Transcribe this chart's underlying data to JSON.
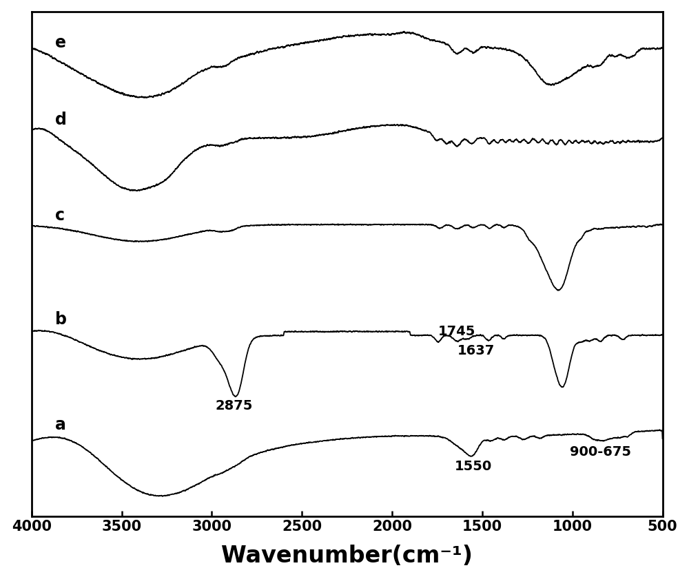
{
  "xmin": 500,
  "xmax": 4000,
  "xlabel": "Wavenumber(cm⁻¹)",
  "xlabel_fontsize": 24,
  "tick_fontsize": 15,
  "background_color": "#ffffff",
  "line_color": "#000000",
  "line_width": 1.3,
  "xticks": [
    4000,
    3500,
    3000,
    2500,
    2000,
    1500,
    1000,
    500
  ],
  "labels": [
    "a",
    "b",
    "c",
    "d",
    "e"
  ],
  "label_fontsize": 17,
  "annotation_fontsize": 14,
  "offsets": [
    0.0,
    1.5,
    3.1,
    4.6,
    6.0
  ],
  "noise_seed": 42,
  "scale": 1.1
}
